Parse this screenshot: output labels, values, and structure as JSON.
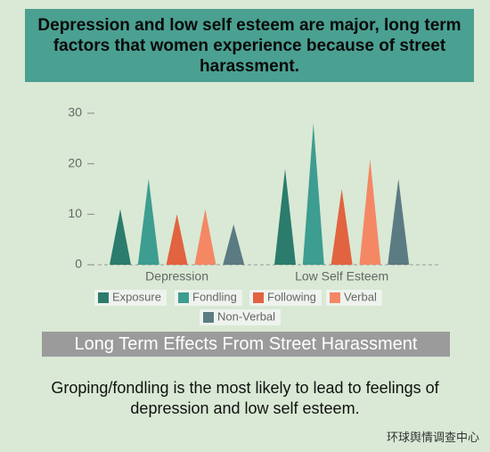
{
  "chart_data": {
    "type": "bar",
    "title": "Depression and low self esteem are major, long term factors that women experience because of street harassment.",
    "subtitle": "Long Term Effects From Street Harassment",
    "annotation": "Groping/fondling is the most likely to lead to feelings of depression and low self esteem.",
    "watermark": "环球舆情调查中心",
    "categories": [
      "Depression",
      "Low Self Esteem"
    ],
    "series": [
      {
        "name": "Exposure",
        "color": "#2b7c6c",
        "values": [
          11,
          19
        ]
      },
      {
        "name": "Fondling",
        "color": "#3d9d90",
        "values": [
          17,
          28
        ]
      },
      {
        "name": "Following",
        "color": "#e2633f",
        "values": [
          10,
          15
        ]
      },
      {
        "name": "Verbal",
        "color": "#f48865",
        "values": [
          11,
          21
        ]
      },
      {
        "name": "Non-Verbal",
        "color": "#5b7b83",
        "values": [
          8,
          17
        ]
      }
    ],
    "ylim": [
      0,
      30
    ],
    "yticks": [
      0,
      10,
      20,
      30
    ],
    "grid": false
  }
}
